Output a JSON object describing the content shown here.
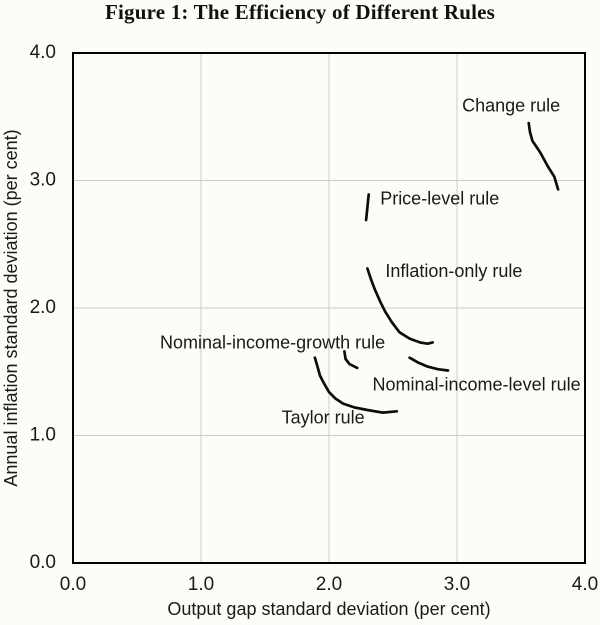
{
  "title": "Figure 1: The Efficiency of Different Rules",
  "chart_data": {
    "type": "line",
    "title": "Figure 1: The Efficiency of Different Rules",
    "xlabel": "Output gap standard deviation (per cent)",
    "ylabel": "Annual inflation standard deviation (per cent)",
    "xlim": [
      0,
      4
    ],
    "ylim": [
      0,
      4
    ],
    "tick_values": [
      0,
      1,
      2,
      3,
      4
    ],
    "xtick_labels": [
      "0.0",
      "1.0",
      "2.0",
      "3.0",
      "4.0"
    ],
    "ytick_labels": [
      "0.0",
      "1.0",
      "2.0",
      "3.0",
      "4.0"
    ],
    "grid": {
      "on": true,
      "spacing": 1.0,
      "color": "#cccccc",
      "boxed_frame": true
    },
    "line_color": "#0d0d0d",
    "frame_color": "#000000",
    "legend_position": "none (inline annotations)",
    "series": [
      {
        "name": "Change rule",
        "points": [
          [
            3.56,
            3.45
          ],
          [
            3.57,
            3.38
          ],
          [
            3.59,
            3.31
          ],
          [
            3.65,
            3.22
          ],
          [
            3.71,
            3.11
          ],
          [
            3.76,
            3.03
          ],
          [
            3.79,
            2.93
          ]
        ],
        "label": "Change rule",
        "label_anchor": [
          3.04,
          3.58
        ]
      },
      {
        "name": "Price-level rule",
        "points": [
          [
            2.31,
            2.89
          ],
          [
            2.3,
            2.79
          ],
          [
            2.29,
            2.69
          ]
        ],
        "label": "Price-level rule",
        "label_anchor": [
          2.4,
          2.85
        ]
      },
      {
        "name": "Inflation-only rule",
        "points": [
          [
            2.3,
            2.31
          ],
          [
            2.33,
            2.22
          ],
          [
            2.36,
            2.14
          ],
          [
            2.4,
            2.05
          ],
          [
            2.44,
            1.97
          ],
          [
            2.49,
            1.89
          ],
          [
            2.55,
            1.81
          ],
          [
            2.63,
            1.76
          ],
          [
            2.71,
            1.73
          ],
          [
            2.77,
            1.72
          ],
          [
            2.81,
            1.73
          ]
        ],
        "label": "Inflation-only rule",
        "label_anchor": [
          2.44,
          2.28
        ]
      },
      {
        "name": "Nominal-income-growth rule",
        "points": [
          [
            2.12,
            1.66
          ],
          [
            2.13,
            1.6
          ],
          [
            2.16,
            1.56
          ],
          [
            2.22,
            1.53
          ]
        ],
        "label": "Nominal-income-growth rule",
        "label_anchor": [
          0.68,
          1.72
        ]
      },
      {
        "name": "Nominal-income-level rule",
        "points": [
          [
            2.63,
            1.61
          ],
          [
            2.7,
            1.57
          ],
          [
            2.77,
            1.54
          ],
          [
            2.85,
            1.52
          ],
          [
            2.93,
            1.51
          ]
        ],
        "label": "Nominal-income-level rule",
        "label_anchor": [
          2.34,
          1.39
        ]
      },
      {
        "name": "Taylor rule",
        "points": [
          [
            1.89,
            1.61
          ],
          [
            1.91,
            1.54
          ],
          [
            1.93,
            1.47
          ],
          [
            1.96,
            1.41
          ],
          [
            2.0,
            1.34
          ],
          [
            2.05,
            1.29
          ],
          [
            2.11,
            1.25
          ],
          [
            2.2,
            1.22
          ],
          [
            2.3,
            1.2
          ],
          [
            2.42,
            1.18
          ],
          [
            2.53,
            1.19
          ]
        ],
        "label": "Taylor rule",
        "label_anchor": [
          1.63,
          1.13
        ]
      }
    ]
  }
}
